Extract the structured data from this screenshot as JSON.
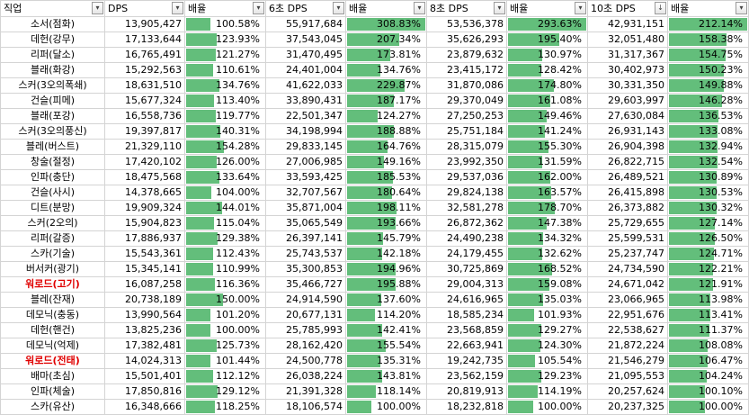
{
  "headers": [
    "직업",
    "DPS",
    "배율",
    "6초 DPS",
    "배율",
    "8초 DPS",
    "배율",
    "10초 DPS",
    "배율"
  ],
  "filter_icons": [
    "filter-dropdown-icon",
    "filter-dropdown-icon",
    "filter-dropdown-icon",
    "filter-dropdown-icon",
    "filter-dropdown-icon",
    "filter-dropdown-icon",
    "filter-dropdown-icon",
    "sort-descending-filter-icon",
    "filter-dropdown-icon"
  ],
  "bar_color": "#63be7b",
  "highlight_color": "#e00000",
  "rows": [
    {
      "name": "소서(점화)",
      "dps": "13,905,427",
      "r1": "100.58%",
      "p1": 0.3258,
      "dps6": "55,917,684",
      "r6": "308.83%",
      "p6": 1.0,
      "dps8": "53,536,378",
      "r8": "293.63%",
      "p8": 1.0,
      "dps10": "42,931,151",
      "r10": "212.14%",
      "p10": 1.0
    },
    {
      "name": "데헌(강무)",
      "dps": "17,133,644",
      "r1": "123.93%",
      "p1": 0.4013,
      "dps6": "37,543,045",
      "r6": "207.34%",
      "p6": 0.6713,
      "dps8": "35,626,293",
      "r8": "195.40%",
      "p8": 0.6655,
      "dps10": "32,051,480",
      "r10": "158.38%",
      "p10": 0.7466
    },
    {
      "name": "리퍼(달소)",
      "dps": "16,765,491",
      "r1": "121.27%",
      "p1": 0.3927,
      "dps6": "31,470,495",
      "r6": "173.81%",
      "p6": 0.5628,
      "dps8": "23,879,632",
      "r8": "130.97%",
      "p8": 0.446,
      "dps10": "31,317,367",
      "r10": "154.75%",
      "p10": 0.7295
    },
    {
      "name": "블래(화강)",
      "dps": "15,292,563",
      "r1": "110.61%",
      "p1": 0.3582,
      "dps6": "24,401,004",
      "r6": "134.76%",
      "p6": 0.4364,
      "dps8": "23,415,172",
      "r8": "128.42%",
      "p8": 0.4374,
      "dps10": "30,402,973",
      "r10": "150.23%",
      "p10": 0.7082
    },
    {
      "name": "스커(3오의폭쇄)",
      "dps": "18,631,510",
      "r1": "134.76%",
      "p1": 0.4364,
      "dps6": "41,622,033",
      "r6": "229.87%",
      "p6": 0.7443,
      "dps8": "31,870,086",
      "r8": "174.80%",
      "p8": 0.5953,
      "dps10": "30,331,350",
      "r10": "149.88%",
      "p10": 0.7065
    },
    {
      "name": "건슬(피메)",
      "dps": "15,677,324",
      "r1": "113.40%",
      "p1": 0.3672,
      "dps6": "33,890,431",
      "r6": "187.17%",
      "p6": 0.6061,
      "dps8": "29,370,049",
      "r8": "161.08%",
      "p8": 0.5486,
      "dps10": "29,603,997",
      "r10": "146.28%",
      "p10": 0.6895
    },
    {
      "name": "블래(포강)",
      "dps": "16,558,736",
      "r1": "119.77%",
      "p1": 0.3878,
      "dps6": "22,501,347",
      "r6": "124.27%",
      "p6": 0.4024,
      "dps8": "27,250,253",
      "r8": "149.46%",
      "p8": 0.509,
      "dps10": "27,630,084",
      "r10": "136.53%",
      "p10": 0.6436
    },
    {
      "name": "스커(3오의풍신)",
      "dps": "19,397,817",
      "r1": "140.31%",
      "p1": 0.4543,
      "dps6": "34,198,994",
      "r6": "188.88%",
      "p6": 0.6116,
      "dps8": "25,751,184",
      "r8": "141.24%",
      "p8": 0.481,
      "dps10": "26,931,143",
      "r10": "133.08%",
      "p10": 0.6273
    },
    {
      "name": "블레(버스트)",
      "dps": "21,329,110",
      "r1": "154.28%",
      "p1": 0.4996,
      "dps6": "29,833,145",
      "r6": "164.76%",
      "p6": 0.5335,
      "dps8": "28,315,079",
      "r8": "155.30%",
      "p8": 0.5289,
      "dps10": "26,904,398",
      "r10": "132.94%",
      "p10": 0.6267
    },
    {
      "name": "창술(절정)",
      "dps": "17,420,102",
      "r1": "126.00%",
      "p1": 0.408,
      "dps6": "27,006,985",
      "r6": "149.16%",
      "p6": 0.483,
      "dps8": "23,992,350",
      "r8": "131.59%",
      "p8": 0.4482,
      "dps10": "26,822,715",
      "r10": "132.54%",
      "p10": 0.6248
    },
    {
      "name": "인파(충단)",
      "dps": "18,475,568",
      "r1": "133.64%",
      "p1": 0.4327,
      "dps6": "33,593,425",
      "r6": "185.53%",
      "p6": 0.6008,
      "dps8": "29,537,036",
      "r8": "162.00%",
      "p8": 0.5517,
      "dps10": "26,489,521",
      "r10": "130.89%",
      "p10": 0.617
    },
    {
      "name": "건슬(사시)",
      "dps": "14,378,665",
      "r1": "104.00%",
      "p1": 0.3368,
      "dps6": "32,707,567",
      "r6": "180.64%",
      "p6": 0.5849,
      "dps8": "29,824,138",
      "r8": "163.57%",
      "p8": 0.5571,
      "dps10": "26,415,898",
      "r10": "130.53%",
      "p10": 0.6153
    },
    {
      "name": "디트(분망)",
      "dps": "19,909,324",
      "r1": "144.01%",
      "p1": 0.4663,
      "dps6": "35,871,004",
      "r6": "198.11%",
      "p6": 0.6415,
      "dps8": "32,581,278",
      "r8": "178.70%",
      "p8": 0.6086,
      "dps10": "26,373,882",
      "r10": "130.32%",
      "p10": 0.6143
    },
    {
      "name": "스커(2오의)",
      "dps": "15,904,823",
      "r1": "115.04%",
      "p1": 0.3725,
      "dps6": "35,065,549",
      "r6": "193.66%",
      "p6": 0.6271,
      "dps8": "26,872,362",
      "r8": "147.38%",
      "p8": 0.5019,
      "dps10": "25,729,655",
      "r10": "127.14%",
      "p10": 0.5993
    },
    {
      "name": "리퍼(갈증)",
      "dps": "17,886,937",
      "r1": "129.38%",
      "p1": 0.4189,
      "dps6": "26,397,141",
      "r6": "145.79%",
      "p6": 0.4721,
      "dps8": "24,490,238",
      "r8": "134.32%",
      "p8": 0.4575,
      "dps10": "25,599,531",
      "r10": "126.50%",
      "p10": 0.5963
    },
    {
      "name": "스카(기술)",
      "dps": "15,543,361",
      "r1": "112.43%",
      "p1": 0.3641,
      "dps6": "25,743,537",
      "r6": "142.18%",
      "p6": 0.4604,
      "dps8": "24,179,455",
      "r8": "132.62%",
      "p8": 0.4517,
      "dps10": "25,237,747",
      "r10": "124.71%",
      "p10": 0.5879
    },
    {
      "name": "버서커(광기)",
      "dps": "15,345,141",
      "r1": "110.99%",
      "p1": 0.3594,
      "dps6": "35,300,853",
      "r6": "194.96%",
      "p6": 0.6313,
      "dps8": "30,725,869",
      "r8": "168.52%",
      "p8": 0.5739,
      "dps10": "24,734,590",
      "r10": "122.21%",
      "p10": 0.5761
    },
    {
      "name": "워로드(고기)",
      "red": true,
      "dps": "16,087,258",
      "r1": "116.36%",
      "p1": 0.3768,
      "dps6": "35,466,727",
      "r6": "195.88%",
      "p6": 0.6343,
      "dps8": "29,004,313",
      "r8": "159.08%",
      "p8": 0.5418,
      "dps10": "24,671,042",
      "r10": "121.91%",
      "p10": 0.5747
    },
    {
      "name": "블레(잔재)",
      "dps": "20,738,189",
      "r1": "150.00%",
      "p1": 0.4857,
      "dps6": "24,914,590",
      "r6": "137.60%",
      "p6": 0.4456,
      "dps8": "24,616,965",
      "r8": "135.03%",
      "p8": 0.4599,
      "dps10": "23,066,965",
      "r10": "113.98%",
      "p10": 0.5373
    },
    {
      "name": "데모닉(충동)",
      "dps": "13,990,564",
      "r1": "101.20%",
      "p1": 0.3277,
      "dps6": "20,677,131",
      "r6": "114.20%",
      "p6": 0.3698,
      "dps8": "18,585,234",
      "r8": "101.93%",
      "p8": 0.3471,
      "dps10": "22,951,676",
      "r10": "113.41%",
      "p10": 0.5346
    },
    {
      "name": "데헌(핸건)",
      "dps": "13,825,236",
      "r1": "100.00%",
      "p1": 0.3238,
      "dps6": "25,785,993",
      "r6": "142.41%",
      "p6": 0.4611,
      "dps8": "23,568,859",
      "r8": "129.27%",
      "p8": 0.4403,
      "dps10": "22,538,627",
      "r10": "111.37%",
      "p10": 0.525
    },
    {
      "name": "데모닉(억제)",
      "dps": "17,382,481",
      "r1": "125.73%",
      "p1": 0.4071,
      "dps6": "28,162,420",
      "r6": "155.54%",
      "p6": 0.5036,
      "dps8": "22,663,941",
      "r8": "124.30%",
      "p8": 0.4233,
      "dps10": "21,872,224",
      "r10": "108.08%",
      "p10": 0.5095
    },
    {
      "name": "워로드(전태)",
      "red": true,
      "dps": "14,024,313",
      "r1": "101.44%",
      "p1": 0.3285,
      "dps6": "24,500,778",
      "r6": "135.31%",
      "p6": 0.4381,
      "dps8": "19,242,735",
      "r8": "105.54%",
      "p8": 0.3594,
      "dps10": "21,546,279",
      "r10": "106.47%",
      "p10": 0.5019
    },
    {
      "name": "배마(초심)",
      "dps": "15,501,401",
      "r1": "112.12%",
      "p1": 0.3631,
      "dps6": "26,038,224",
      "r6": "143.81%",
      "p6": 0.4657,
      "dps8": "23,562,159",
      "r8": "129.23%",
      "p8": 0.4401,
      "dps10": "21,095,553",
      "r10": "104.24%",
      "p10": 0.4914
    },
    {
      "name": "인파(체술)",
      "dps": "17,850,816",
      "r1": "129.12%",
      "p1": 0.4181,
      "dps6": "21,391,328",
      "r6": "118.14%",
      "p6": 0.3825,
      "dps8": "20,819,913",
      "r8": "114.19%",
      "p8": 0.3889,
      "dps10": "20,257,624",
      "r10": "100.10%",
      "p10": 0.4719
    },
    {
      "name": "스카(유산)",
      "dps": "16,348,666",
      "r1": "118.25%",
      "p1": 0.3829,
      "dps6": "18,106,574",
      "r6": "100.00%",
      "p6": 0.3238,
      "dps8": "18,232,818",
      "r8": "100.00%",
      "p8": 0.3406,
      "dps10": "20,237,325",
      "r10": "100.00%",
      "p10": 0.4714
    }
  ]
}
